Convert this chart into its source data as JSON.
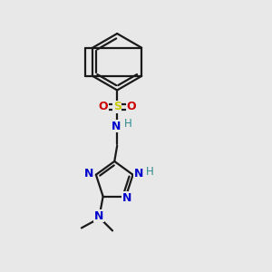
{
  "bg_color": "#e8e8e8",
  "bond_color": "#1a1a1a",
  "N_color": "#0000cc",
  "S_color": "#cccc00",
  "O_color": "#cc0000",
  "H_color": "#2e8b8b",
  "line_width": 1.6,
  "figsize": [
    3.0,
    3.0
  ],
  "dpi": 100,
  "xlim": [
    0,
    10
  ],
  "ylim": [
    0,
    10
  ]
}
